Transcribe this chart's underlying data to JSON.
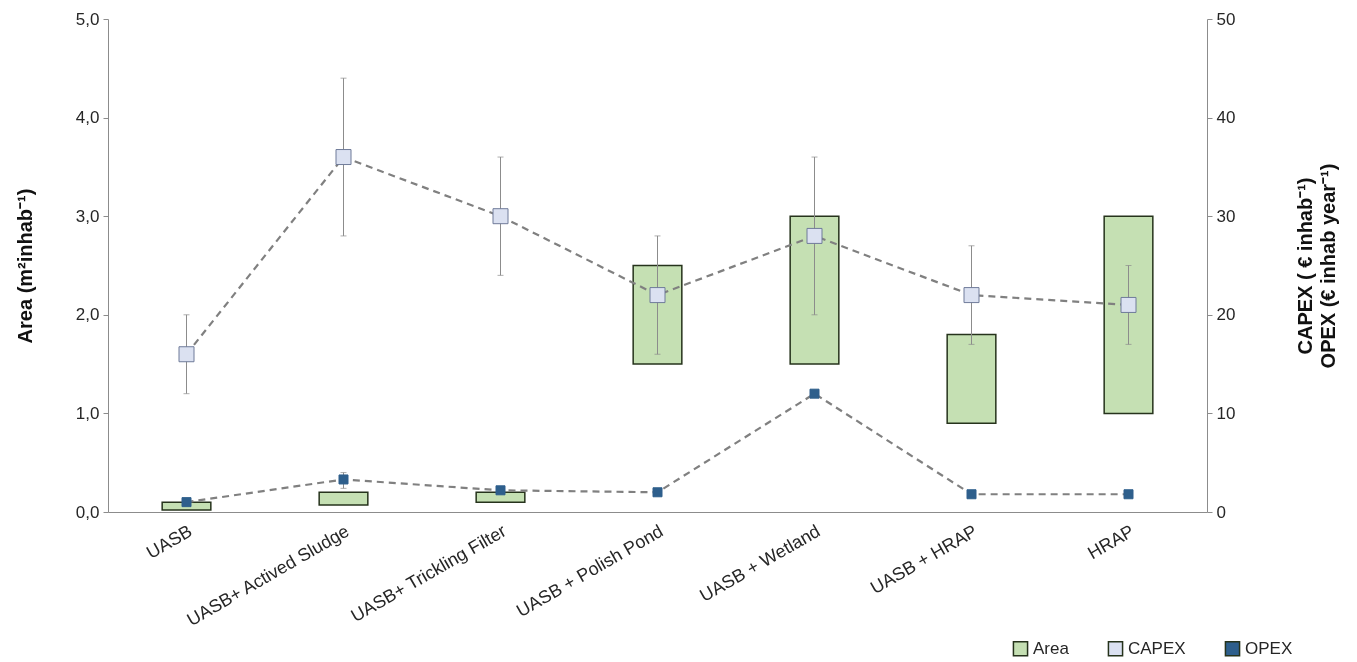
{
  "chart_data": {
    "type": "bar",
    "categories": [
      "UASB",
      "UASB+ Actived Sludge",
      "UASB+ Trickling Filter",
      "UASB + Polish Pond",
      "UASB + Wetland",
      "UASB + HRAP",
      "HRAP"
    ],
    "ylabel": "Area (m²inhab⁻¹)",
    "y2label": "CAPEX ( € inhab⁻¹)\nOPEX (€ inhab year⁻¹)",
    "ylim": [
      0,
      5
    ],
    "yticks": [
      {
        "value": 0,
        "label": "0,0"
      },
      {
        "value": 1,
        "label": "1,0"
      },
      {
        "value": 2,
        "label": "2,0"
      },
      {
        "value": 3,
        "label": "3,0"
      },
      {
        "value": 4,
        "label": "4,0"
      },
      {
        "value": 5,
        "label": "5,0"
      }
    ],
    "y2lim": [
      0,
      50
    ],
    "y2ticks": [
      0,
      10,
      20,
      30,
      40,
      50
    ],
    "legend": "bottom right",
    "series": [
      {
        "name": "Area",
        "color": "#c5e0b3",
        "base": [
          0.02,
          0.07,
          0.1,
          1.5,
          1.5,
          0.9,
          1.0
        ],
        "values": [
          0.08,
          0.13,
          0.1,
          1.0,
          1.5,
          0.9,
          2.0
        ]
      },
      {
        "name": "CAPEX",
        "type": "line",
        "axis": "y2",
        "color": "#dbe1f1",
        "marker": "square",
        "line_style": "dashed",
        "values": [
          16,
          36,
          30,
          22,
          28,
          22,
          21
        ],
        "errors": [
          [
            12,
            20
          ],
          [
            28,
            44
          ],
          [
            24,
            36
          ],
          [
            16,
            28
          ],
          [
            20,
            36
          ],
          [
            17,
            27
          ],
          [
            17,
            25
          ]
        ]
      },
      {
        "name": "OPEX",
        "type": "line",
        "axis": "y2",
        "color": "#2e5f8c",
        "marker": "square",
        "line_style": "dashed",
        "values": [
          1.0,
          3.3,
          2.2,
          2.0,
          12,
          1.8,
          1.8
        ],
        "errors": [
          null,
          [
            2.4,
            4.0
          ],
          null,
          null,
          null,
          null,
          null
        ]
      }
    ]
  }
}
